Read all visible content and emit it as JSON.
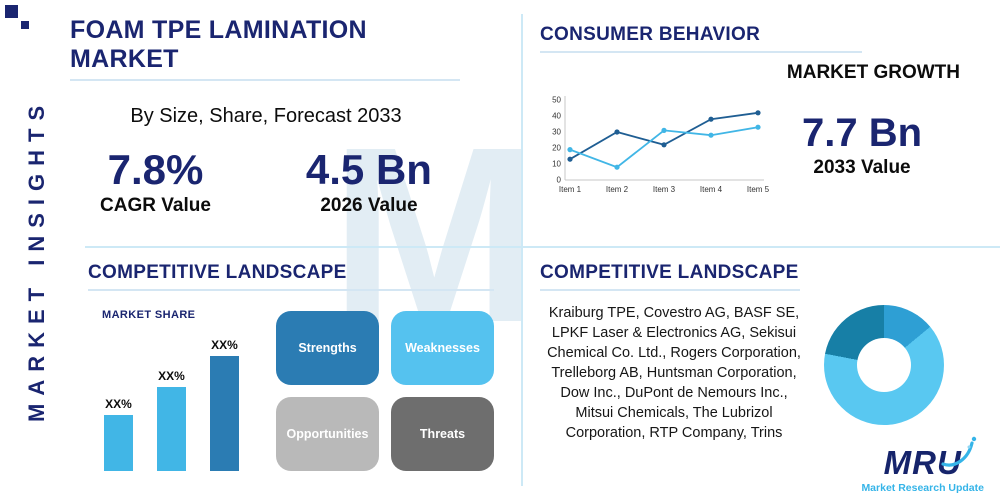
{
  "colors": {
    "navy": "#1a2570",
    "light_blue": "#41b6e6",
    "divider": "#cde9f6"
  },
  "sidebar": {
    "label": "MARKET INSIGHTS"
  },
  "header": {
    "title": "FOAM TPE LAMINATION MARKET",
    "subtitle": "By Size, Share, Forecast 2033"
  },
  "stats": [
    {
      "value": "7.8%",
      "label": "CAGR Value"
    },
    {
      "value": "4.5 Bn",
      "label": "2026 Value"
    }
  ],
  "growth": {
    "section_title": "CONSUMER BEHAVIOR",
    "section_subtitle": "MARKET GROWTH",
    "value": "7.7 Bn",
    "label": "2033 Value"
  },
  "competitive_left": {
    "title": "COMPETITIVE LANDSCAPE",
    "chart_title": "MARKET SHARE",
    "swot": [
      {
        "label": "Strengths",
        "color": "#2b7cb3"
      },
      {
        "label": "Weaknesses",
        "color": "#55c2ef"
      },
      {
        "label": "Opportunities",
        "color": "#b9b9b9"
      },
      {
        "label": "Threats",
        "color": "#6e6e6e"
      }
    ]
  },
  "competitive_right": {
    "title": "COMPETITIVE LANDSCAPE",
    "companies": "Kraiburg TPE, Covestro AG, BASF SE, LPKF Laser & Electronics AG, Sekisui Chemical Co. Ltd., Rogers Corporation, Trelleborg AB, Huntsman Corporation, Dow Inc., DuPont de Nemours Inc., Mitsui Chemicals, The Lubrizol Corporation, RTP Company, Trins"
  },
  "logo": {
    "text": "MRU",
    "tagline": "Market Research Update"
  },
  "watermark": "M",
  "chart_data": [
    {
      "type": "line",
      "title": "Consumer behavior market growth trend",
      "categories": [
        "Item 1",
        "Item 2",
        "Item 3",
        "Item 4",
        "Item 5"
      ],
      "series": [
        {
          "name": "series-dark-blue",
          "color": "#1f5e93",
          "values": [
            13,
            30,
            22,
            38,
            42
          ]
        },
        {
          "name": "series-light-blue",
          "color": "#41b6e6",
          "values": [
            19,
            8,
            31,
            28,
            33
          ]
        }
      ],
      "ylim": [
        0,
        50
      ],
      "yticks": [
        0,
        10,
        20,
        30,
        40,
        50
      ],
      "grid": false,
      "legend": false
    },
    {
      "type": "bar",
      "title": "MARKET SHARE",
      "labels": [
        "XX%",
        "XX%",
        "XX%"
      ],
      "values": [
        30,
        45,
        62
      ],
      "colors": [
        "#41b6e6",
        "#41b6e6",
        "#2b7cb3"
      ]
    },
    {
      "type": "donut",
      "slices": [
        {
          "color": "#2e9fd4",
          "value": 14
        },
        {
          "color": "#59c8f1",
          "value": 64
        },
        {
          "color": "#177fa6",
          "value": 22
        }
      ]
    }
  ]
}
